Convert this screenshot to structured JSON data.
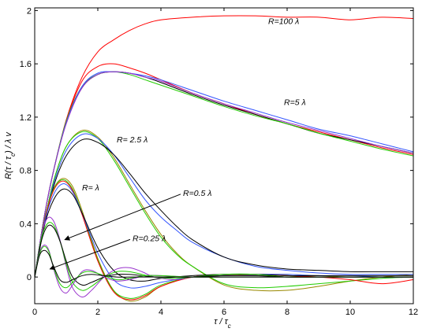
{
  "chart_data": {
    "type": "line",
    "xlabel": "τ / τ",
    "xlabel_sub": "c",
    "ylabel_parts": [
      "R(τ / τ",
      "c",
      ") / λ v"
    ],
    "xlim": [
      0,
      12
    ],
    "ylim": [
      -0.2,
      2.02
    ],
    "xticks": [
      0,
      2,
      4,
      6,
      8,
      10,
      12
    ],
    "xtick_labels": [
      "0",
      "2",
      "4",
      "6",
      "8",
      "10",
      "12"
    ],
    "yticks": [
      0,
      0.4,
      0.8,
      1.2,
      1.6,
      2
    ],
    "ytick_labels": [
      "0",
      "0.4",
      "0.8",
      "1.2",
      "1.6",
      "2"
    ],
    "grid": false,
    "colors": {
      "red": "#ff0000",
      "green": "#22cc00",
      "blue": "#3355ff",
      "black": "#000000",
      "olive": "#998800",
      "purple": "#9933cc"
    },
    "annotations": [
      {
        "text": "R=100 λ",
        "x": 7.4,
        "y": 1.9
      },
      {
        "text": "R=5 λ",
        "x": 7.9,
        "y": 1.29
      },
      {
        "text": "R= 2.5 λ",
        "x": 2.6,
        "y": 1.01
      },
      {
        "text": "R= λ",
        "x": 1.5,
        "y": 0.65
      },
      {
        "text": "R=0.5 λ",
        "x": 4.7,
        "y": 0.61,
        "arrow_to": [
          0.95,
          0.28
        ]
      },
      {
        "text": "R=0.25 λ",
        "x": 3.1,
        "y": 0.27,
        "arrow_to": [
          0.48,
          0.06
        ]
      }
    ],
    "series": [
      {
        "group": "R=100λ",
        "color": "red",
        "x": [
          0,
          0.3,
          0.6,
          1,
          1.5,
          2,
          2.5,
          3,
          3.5,
          4,
          5,
          6,
          7,
          8,
          9,
          10,
          11,
          12
        ],
        "y": [
          0,
          0.45,
          0.8,
          1.18,
          1.5,
          1.69,
          1.78,
          1.85,
          1.9,
          1.93,
          1.95,
          1.96,
          1.96,
          1.95,
          1.95,
          1.93,
          1.95,
          1.94
        ]
      },
      {
        "group": "R=5λ",
        "color": "red",
        "x": [
          0,
          0.3,
          0.6,
          1,
          1.5,
          2,
          2.5,
          3,
          3.5,
          4,
          5,
          6,
          7,
          8,
          9,
          10,
          11,
          12
        ],
        "y": [
          0,
          0.45,
          0.8,
          1.17,
          1.47,
          1.58,
          1.6,
          1.57,
          1.53,
          1.48,
          1.38,
          1.3,
          1.22,
          1.15,
          1.09,
          1.03,
          0.97,
          0.92
        ]
      },
      {
        "group": "R=5λ",
        "color": "black",
        "x": [
          0,
          0.3,
          0.6,
          1,
          1.5,
          2,
          2.5,
          3,
          3.5,
          4,
          5,
          6,
          7,
          8,
          9,
          10,
          11,
          12
        ],
        "y": [
          0,
          0.45,
          0.8,
          1.16,
          1.42,
          1.52,
          1.54,
          1.53,
          1.5,
          1.46,
          1.37,
          1.29,
          1.22,
          1.15,
          1.08,
          1.03,
          0.98,
          0.93
        ]
      },
      {
        "group": "R=5λ",
        "color": "green",
        "x": [
          0,
          0.3,
          0.6,
          1,
          1.5,
          2,
          2.5,
          3,
          3.5,
          4,
          5,
          6,
          7,
          8,
          9,
          10,
          11,
          12
        ],
        "y": [
          0,
          0.45,
          0.8,
          1.17,
          1.43,
          1.52,
          1.54,
          1.52,
          1.48,
          1.44,
          1.36,
          1.28,
          1.21,
          1.15,
          1.08,
          1.02,
          0.96,
          0.91
        ]
      },
      {
        "group": "R=5λ",
        "color": "blue",
        "x": [
          0,
          0.3,
          0.6,
          1,
          1.5,
          2,
          2.5,
          3,
          3.5,
          4,
          5,
          6,
          7,
          8,
          9,
          10,
          11,
          12
        ],
        "y": [
          0,
          0.45,
          0.8,
          1.16,
          1.43,
          1.53,
          1.54,
          1.53,
          1.51,
          1.48,
          1.4,
          1.32,
          1.25,
          1.18,
          1.11,
          1.06,
          1.0,
          0.94
        ]
      },
      {
        "group": "R=5λ",
        "color": "purple",
        "x": [
          0,
          0.3,
          0.6,
          1,
          1.5,
          2,
          2.5,
          3,
          3.5,
          4,
          5,
          6,
          7,
          8,
          9,
          10,
          11,
          12
        ],
        "y": [
          0,
          0.45,
          0.8,
          1.15,
          1.42,
          1.52,
          1.54,
          1.53,
          1.5,
          1.47,
          1.38,
          1.3,
          1.23,
          1.16,
          1.1,
          1.04,
          0.98,
          0.93
        ]
      },
      {
        "group": "R=2.5λ",
        "color": "olive",
        "x": [
          0,
          0.3,
          0.6,
          1,
          1.5,
          2,
          2.5,
          3,
          3.5,
          4,
          4.5,
          5,
          6,
          7,
          8,
          9,
          10,
          11,
          12
        ],
        "y": [
          0,
          0.4,
          0.72,
          0.98,
          1.1,
          1.05,
          0.9,
          0.7,
          0.5,
          0.32,
          0.18,
          0.08,
          -0.06,
          -0.1,
          -0.1,
          -0.07,
          -0.03,
          0.0,
          0.02
        ]
      },
      {
        "group": "R=2.5λ",
        "color": "green",
        "x": [
          0,
          0.3,
          0.6,
          1,
          1.5,
          2,
          2.5,
          3,
          3.5,
          4,
          4.5,
          5,
          6,
          7,
          8,
          9,
          10,
          11,
          12
        ],
        "y": [
          0,
          0.4,
          0.72,
          0.98,
          1.09,
          1.04,
          0.88,
          0.68,
          0.48,
          0.3,
          0.17,
          0.08,
          -0.05,
          -0.08,
          -0.07,
          -0.05,
          -0.03,
          -0.01,
          0.0
        ]
      },
      {
        "group": "R=2.5λ",
        "color": "blue",
        "x": [
          0,
          0.3,
          0.6,
          1,
          1.5,
          2,
          2.5,
          3,
          3.5,
          4,
          4.5,
          5,
          6,
          7,
          8,
          9,
          10,
          11,
          12
        ],
        "y": [
          0,
          0.4,
          0.7,
          0.95,
          1.07,
          1.04,
          0.92,
          0.75,
          0.58,
          0.45,
          0.35,
          0.26,
          0.15,
          0.08,
          0.05,
          0.03,
          0.02,
          0.02,
          0.02
        ]
      },
      {
        "group": "R=2.5λ",
        "color": "black",
        "x": [
          0,
          0.3,
          0.6,
          1,
          1.5,
          2,
          2.5,
          3,
          3.5,
          4,
          4.5,
          5,
          6,
          7,
          8,
          9,
          10,
          11,
          12
        ],
        "y": [
          0,
          0.38,
          0.68,
          0.91,
          1.03,
          1.01,
          0.92,
          0.78,
          0.63,
          0.5,
          0.38,
          0.28,
          0.15,
          0.09,
          0.06,
          0.05,
          0.04,
          0.04,
          0.04
        ]
      },
      {
        "group": "R=λ",
        "color": "olive",
        "x": [
          0,
          0.3,
          0.6,
          0.9,
          1.2,
          1.5,
          2,
          2.5,
          3,
          3.5,
          4,
          5,
          6,
          7,
          8,
          9,
          10,
          11,
          12
        ],
        "y": [
          0,
          0.42,
          0.66,
          0.74,
          0.68,
          0.5,
          0.14,
          -0.1,
          -0.18,
          -0.15,
          -0.07,
          0.0,
          0.01,
          0.02,
          0.02,
          0.01,
          0.0,
          0.0,
          0.0
        ]
      },
      {
        "group": "R=λ",
        "color": "green",
        "x": [
          0,
          0.3,
          0.6,
          0.9,
          1.2,
          1.5,
          2,
          2.5,
          3,
          3.5,
          4,
          5,
          6,
          7,
          8,
          9,
          10,
          11,
          12
        ],
        "y": [
          0,
          0.42,
          0.66,
          0.73,
          0.66,
          0.48,
          0.13,
          -0.1,
          -0.16,
          -0.13,
          -0.06,
          0.0,
          0.02,
          0.02,
          0.01,
          0.0,
          0.0,
          0.0,
          0.0
        ]
      },
      {
        "group": "R=λ",
        "color": "red",
        "x": [
          0,
          0.3,
          0.6,
          0.9,
          1.2,
          1.5,
          2,
          2.5,
          3,
          3.5,
          4,
          5,
          6,
          7,
          8,
          9,
          10,
          11,
          12
        ],
        "y": [
          0,
          0.41,
          0.65,
          0.72,
          0.65,
          0.47,
          0.12,
          -0.11,
          -0.17,
          -0.14,
          -0.07,
          0.0,
          0.02,
          0.02,
          0.01,
          0.0,
          -0.02,
          -0.05,
          -0.02
        ]
      },
      {
        "group": "R=λ",
        "color": "blue",
        "x": [
          0,
          0.3,
          0.6,
          0.9,
          1.2,
          1.5,
          2,
          2.5,
          3,
          3.5,
          4,
          5,
          6,
          7,
          8,
          9,
          10,
          11,
          12
        ],
        "y": [
          0,
          0.4,
          0.62,
          0.7,
          0.64,
          0.48,
          0.18,
          -0.02,
          -0.08,
          -0.07,
          -0.04,
          0.0,
          0.02,
          0.02,
          0.02,
          0.01,
          0.01,
          0.0,
          0.0
        ]
      },
      {
        "group": "R=λ",
        "color": "black",
        "x": [
          0,
          0.3,
          0.6,
          0.9,
          1.2,
          1.5,
          2,
          2.5,
          3,
          3.5,
          4,
          5,
          6,
          7,
          8,
          9,
          10,
          11,
          12
        ],
        "y": [
          0,
          0.38,
          0.58,
          0.66,
          0.62,
          0.48,
          0.22,
          0.05,
          -0.02,
          -0.03,
          -0.01,
          0.01,
          0.02,
          0.02,
          0.01,
          0.01,
          0.01,
          0.01,
          0.01
        ]
      },
      {
        "group": "R=0.5λ",
        "color": "purple",
        "x": [
          0,
          0.2,
          0.4,
          0.6,
          0.8,
          1.0,
          1.2,
          1.5,
          1.8,
          2.2,
          2.6,
          3.0,
          3.4,
          3.8,
          4.5,
          5,
          6,
          7,
          8,
          9,
          10,
          11,
          12
        ],
        "y": [
          0,
          0.3,
          0.44,
          0.42,
          0.28,
          0.08,
          -0.08,
          -0.15,
          -0.1,
          0.0,
          0.06,
          0.07,
          0.04,
          0.0,
          -0.02,
          0.0,
          0.01,
          0.01,
          0.0,
          0.0,
          0.0,
          0.0,
          0.0
        ]
      },
      {
        "group": "R=0.5λ",
        "color": "green",
        "x": [
          0,
          0.2,
          0.4,
          0.6,
          0.8,
          1.0,
          1.2,
          1.5,
          1.8,
          2.2,
          2.6,
          3.0,
          3.4,
          3.8,
          4.5,
          5,
          6,
          7,
          8,
          9,
          10,
          11,
          12
        ],
        "y": [
          0,
          0.28,
          0.4,
          0.39,
          0.27,
          0.1,
          -0.04,
          -0.1,
          -0.07,
          0.0,
          0.04,
          0.04,
          0.02,
          0.0,
          -0.01,
          0.0,
          0.02,
          0.02,
          0.0,
          0.0,
          0.0,
          0.0,
          0.0
        ]
      },
      {
        "group": "R=0.5λ",
        "color": "black",
        "x": [
          0,
          0.2,
          0.4,
          0.6,
          0.8,
          1.0,
          1.2,
          1.5,
          1.8,
          2.2,
          2.6,
          3.0,
          3.4,
          3.8,
          4.5,
          5,
          6,
          7,
          8,
          9,
          10,
          11,
          12
        ],
        "y": [
          0,
          0.26,
          0.38,
          0.37,
          0.27,
          0.12,
          0.0,
          -0.06,
          -0.04,
          0.0,
          0.02,
          0.02,
          0.01,
          0.0,
          0.0,
          0.0,
          0.01,
          0.01,
          0.0,
          0.0,
          0.0,
          0.0,
          0.0
        ]
      },
      {
        "group": "R=0.25λ",
        "color": "purple",
        "x": [
          0,
          0.15,
          0.3,
          0.45,
          0.6,
          0.8,
          1.0,
          1.2,
          1.5,
          1.8,
          2.2,
          2.6,
          3.0,
          3.5,
          4,
          5,
          6,
          8,
          10,
          12
        ],
        "y": [
          0,
          0.18,
          0.24,
          0.2,
          0.06,
          -0.08,
          -0.12,
          -0.06,
          0.04,
          0.05,
          0.0,
          -0.03,
          -0.02,
          0.01,
          0.01,
          0.0,
          0.0,
          0.0,
          0.0,
          0.0
        ]
      },
      {
        "group": "R=0.25λ",
        "color": "green",
        "x": [
          0,
          0.15,
          0.3,
          0.45,
          0.6,
          0.8,
          1.0,
          1.2,
          1.5,
          1.8,
          2.2,
          2.6,
          3.0,
          3.5,
          4,
          5,
          6,
          8,
          10,
          12
        ],
        "y": [
          0,
          0.17,
          0.23,
          0.19,
          0.07,
          -0.05,
          -0.08,
          -0.04,
          0.03,
          0.04,
          0.01,
          -0.02,
          -0.01,
          0.01,
          0.01,
          0.0,
          0.0,
          0.0,
          0.0,
          0.0
        ]
      },
      {
        "group": "R=0.25λ",
        "color": "black",
        "x": [
          0,
          0.15,
          0.3,
          0.45,
          0.6,
          0.8,
          1.0,
          1.2,
          1.5,
          1.8,
          2.2,
          2.6,
          3.0,
          3.5,
          4,
          5,
          6,
          8,
          10,
          12
        ],
        "y": [
          0,
          0.16,
          0.2,
          0.17,
          0.08,
          -0.02,
          -0.04,
          -0.02,
          0.01,
          0.02,
          0.01,
          0.0,
          0.0,
          0.0,
          0.0,
          0.0,
          0.0,
          0.0,
          0.0,
          0.0
        ]
      }
    ]
  }
}
